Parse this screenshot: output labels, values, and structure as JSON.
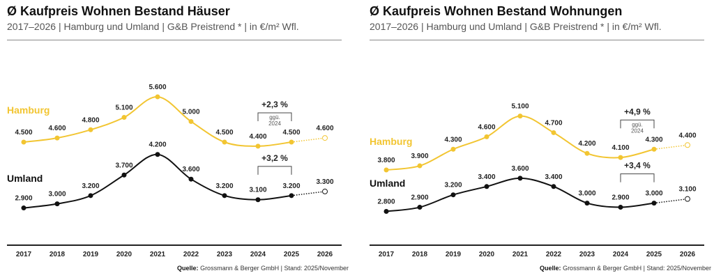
{
  "colors": {
    "hamburg": "#f2c531",
    "umland": "#111111"
  },
  "chart_data": [
    {
      "type": "line",
      "title": "Ø Kaufpreis Wohnen Bestand Häuser",
      "subtitle": "2017–2026 | Hamburg und Umland | G&B Preistrend * | in €/m² Wfl.",
      "categories": [
        "2017",
        "2018",
        "2019",
        "2020",
        "2021",
        "2022",
        "2023",
        "2024",
        "2025",
        "2026"
      ],
      "series": [
        {
          "name": "Hamburg",
          "values": [
            4500,
            4600,
            4800,
            5100,
            5600,
            5000,
            4500,
            4400,
            4500,
            4600
          ],
          "labels": [
            "4.500",
            "4.600",
            "4.800",
            "5.100",
            "5.600",
            "5.000",
            "4.500",
            "4.400",
            "4.500",
            "4.600"
          ]
        },
        {
          "name": "Umland",
          "values": [
            2900,
            3000,
            3200,
            3700,
            4200,
            3600,
            3200,
            3100,
            3200,
            3300
          ],
          "labels": [
            "2.900",
            "3.000",
            "3.200",
            "3.700",
            "4.200",
            "3.600",
            "3.200",
            "3.100",
            "3.200",
            "3.300"
          ]
        }
      ],
      "annotations": [
        {
          "series": "Hamburg",
          "text": "+2,3 %",
          "note1": "ggü.",
          "note2": "2024"
        },
        {
          "series": "Umland",
          "text": "+3,2 %"
        }
      ],
      "source_label": "Quelle:",
      "source": "Grossmann & Berger GmbH | Stand: 2025/November",
      "forecast_year": "2026"
    },
    {
      "type": "line",
      "title": "Ø Kaufpreis Wohnen Bestand Wohnungen",
      "subtitle": "2017–2026 | Hamburg und Umland | G&B Preistrend * | in €/m² Wfl.",
      "categories": [
        "2017",
        "2018",
        "2019",
        "2020",
        "2021",
        "2022",
        "2023",
        "2024",
        "2025",
        "2026"
      ],
      "series": [
        {
          "name": "Hamburg",
          "values": [
            3800,
            3900,
            4300,
            4600,
            5100,
            4700,
            4200,
            4100,
            4300,
            4400
          ],
          "labels": [
            "3.800",
            "3.900",
            "4.300",
            "4.600",
            "5.100",
            "4.700",
            "4.200",
            "4.100",
            "4.300",
            "4.400"
          ]
        },
        {
          "name": "Umland",
          "values": [
            2800,
            2900,
            3200,
            3400,
            3600,
            3400,
            3000,
            2900,
            3000,
            3100
          ],
          "labels": [
            "2.800",
            "2.900",
            "3.200",
            "3.400",
            "3.600",
            "3.400",
            "3.000",
            "2.900",
            "3.000",
            "3.100"
          ]
        }
      ],
      "annotations": [
        {
          "series": "Hamburg",
          "text": "+4,9 %",
          "note1": "ggü.",
          "note2": "2024"
        },
        {
          "series": "Umland",
          "text": "+3,4 %"
        }
      ],
      "source_label": "Quelle:",
      "source": "Grossmann & Berger GmbH | Stand: 2025/November",
      "forecast_year": "2026"
    }
  ]
}
